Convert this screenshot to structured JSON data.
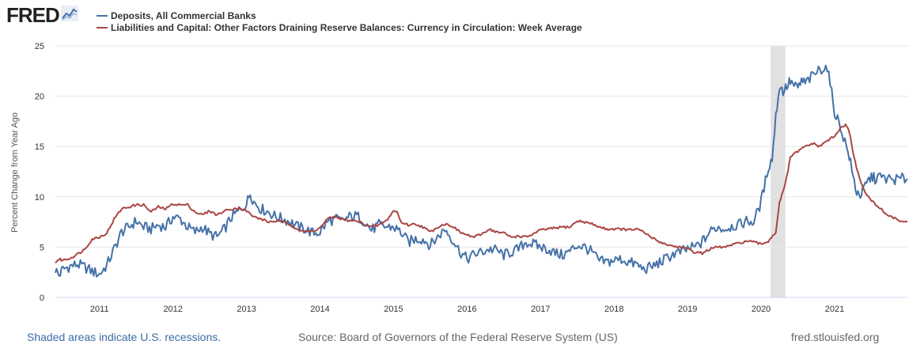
{
  "header": {
    "logo_text": "FRED",
    "logo_icon": "fred-chart-icon"
  },
  "footer": {
    "recession_note": "Shaded areas indicate U.S. recessions.",
    "source": "Source: Board of Governors of the Federal Reserve System (US)",
    "site": "fred.stlouisfed.org"
  },
  "colors": {
    "deposits": "#4572a7",
    "currency": "#aa4643",
    "grid": "#e6e6e6",
    "recession": "#e1e1e1",
    "axis_text": "#333333"
  },
  "chart_data": {
    "type": "line",
    "title": "",
    "xlabel": "",
    "ylabel": "Percent Change from Year Ago",
    "ylim": [
      0,
      25
    ],
    "yticks": [
      0,
      5,
      10,
      15,
      20,
      25
    ],
    "xlim": [
      2010.4,
      2021.99
    ],
    "xticks": [
      2011,
      2012,
      2013,
      2014,
      2015,
      2016,
      2017,
      2018,
      2019,
      2020,
      2021
    ],
    "xtick_labels": [
      "2011",
      "2012",
      "2013",
      "2014",
      "2015",
      "2016",
      "2017",
      "2018",
      "2019",
      "2020",
      "2021"
    ],
    "grid": true,
    "recessions": [
      [
        2020.13,
        2020.33
      ]
    ],
    "series": [
      {
        "name": "Deposits, All Commercial Banks",
        "color": "#4572a7",
        "x": [
          2010.4,
          2010.45,
          2010.5,
          2010.6,
          2010.7,
          2010.8,
          2010.9,
          2011.0,
          2011.1,
          2011.2,
          2011.3,
          2011.4,
          2011.5,
          2011.6,
          2011.7,
          2011.8,
          2011.9,
          2012.0,
          2012.1,
          2012.2,
          2012.3,
          2012.4,
          2012.5,
          2012.6,
          2012.7,
          2012.8,
          2012.9,
          2013.0,
          2013.05,
          2013.1,
          2013.2,
          2013.3,
          2013.4,
          2013.5,
          2013.6,
          2013.7,
          2013.8,
          2013.9,
          2014.0,
          2014.1,
          2014.2,
          2014.3,
          2014.4,
          2014.5,
          2014.6,
          2014.7,
          2014.8,
          2014.9,
          2015.0,
          2015.1,
          2015.2,
          2015.3,
          2015.4,
          2015.5,
          2015.6,
          2015.7,
          2015.8,
          2015.9,
          2016.0,
          2016.1,
          2016.2,
          2016.3,
          2016.4,
          2016.5,
          2016.6,
          2016.7,
          2016.8,
          2016.9,
          2017.0,
          2017.1,
          2017.2,
          2017.3,
          2017.4,
          2017.5,
          2017.6,
          2017.7,
          2017.8,
          2017.9,
          2018.0,
          2018.1,
          2018.2,
          2018.3,
          2018.4,
          2018.5,
          2018.6,
          2018.7,
          2018.8,
          2018.9,
          2019.0,
          2019.1,
          2019.2,
          2019.3,
          2019.4,
          2019.5,
          2019.6,
          2019.7,
          2019.8,
          2019.9,
          2020.0,
          2020.1,
          2020.15,
          2020.2,
          2020.25,
          2020.3,
          2020.35,
          2020.4,
          2020.45,
          2020.5,
          2020.55,
          2020.6,
          2020.7,
          2020.8,
          2020.9,
          2021.0,
          2021.1,
          2021.2,
          2021.25,
          2021.3,
          2021.35,
          2021.4,
          2021.45,
          2021.5,
          2021.55,
          2021.6,
          2021.7,
          2021.8,
          2021.9,
          2021.99
        ],
        "values": [
          2.8,
          2.2,
          2.8,
          3.1,
          3.3,
          3.0,
          2.6,
          2.3,
          3.2,
          4.8,
          6.5,
          7.0,
          7.6,
          7.0,
          6.8,
          7.2,
          7.0,
          8.0,
          7.8,
          7.0,
          6.5,
          7.0,
          6.3,
          6.0,
          6.8,
          8.0,
          8.6,
          9.3,
          10.4,
          9.5,
          8.8,
          8.5,
          8.0,
          7.8,
          7.5,
          7.0,
          6.8,
          6.4,
          6.5,
          7.5,
          7.8,
          7.6,
          8.0,
          8.1,
          7.6,
          6.7,
          7.2,
          7.0,
          7.0,
          6.5,
          5.5,
          5.8,
          5.8,
          5.2,
          6.0,
          6.8,
          5.8,
          4.6,
          3.8,
          4.3,
          4.5,
          4.8,
          4.7,
          4.2,
          4.5,
          4.8,
          5.5,
          5.3,
          5.0,
          4.8,
          4.4,
          4.2,
          4.6,
          5.2,
          5.0,
          4.5,
          3.6,
          3.5,
          3.7,
          3.8,
          3.5,
          3.3,
          2.8,
          3.0,
          3.4,
          3.8,
          4.3,
          4.5,
          4.8,
          5.0,
          5.5,
          6.5,
          7.0,
          6.8,
          7.1,
          7.2,
          7.6,
          7.5,
          9.5,
          13.0,
          13.8,
          18.0,
          21.0,
          20.5,
          21.0,
          21.5,
          21.0,
          20.8,
          21.5,
          21.3,
          22.0,
          22.7,
          22.9,
          18.5,
          16.5,
          14.0,
          12.0,
          10.5,
          10.2,
          10.8,
          11.5,
          12.0,
          11.8,
          12.0,
          11.8,
          11.7,
          11.8,
          11.8
        ]
      },
      {
        "name": "Liabilities and Capital: Other Factors Draining Reserve Balances: Currency in Circulation: Week Average",
        "color": "#aa4643",
        "x": [
          2010.4,
          2010.45,
          2010.5,
          2010.6,
          2010.7,
          2010.8,
          2010.9,
          2011.0,
          2011.1,
          2011.2,
          2011.3,
          2011.4,
          2011.5,
          2011.6,
          2011.7,
          2011.8,
          2011.9,
          2012.0,
          2012.1,
          2012.2,
          2012.3,
          2012.4,
          2012.5,
          2012.6,
          2012.7,
          2012.8,
          2012.9,
          2013.0,
          2013.1,
          2013.2,
          2013.3,
          2013.4,
          2013.5,
          2013.6,
          2013.7,
          2013.8,
          2013.9,
          2014.0,
          2014.1,
          2014.2,
          2014.3,
          2014.4,
          2014.5,
          2014.6,
          2014.7,
          2014.8,
          2014.9,
          2015.0,
          2015.05,
          2015.1,
          2015.2,
          2015.3,
          2015.4,
          2015.5,
          2015.6,
          2015.7,
          2015.8,
          2015.9,
          2016.0,
          2016.1,
          2016.2,
          2016.3,
          2016.4,
          2016.5,
          2016.6,
          2016.7,
          2016.8,
          2016.9,
          2017.0,
          2017.1,
          2017.2,
          2017.3,
          2017.4,
          2017.5,
          2017.6,
          2017.7,
          2017.8,
          2017.9,
          2018.0,
          2018.1,
          2018.2,
          2018.3,
          2018.4,
          2018.5,
          2018.6,
          2018.7,
          2018.8,
          2018.9,
          2019.0,
          2019.1,
          2019.2,
          2019.3,
          2019.4,
          2019.5,
          2019.6,
          2019.7,
          2019.8,
          2019.9,
          2020.0,
          2020.1,
          2020.2,
          2020.25,
          2020.3,
          2020.35,
          2020.4,
          2020.5,
          2020.6,
          2020.7,
          2020.8,
          2020.9,
          2021.0,
          2021.1,
          2021.15,
          2021.2,
          2021.25,
          2021.3,
          2021.4,
          2021.5,
          2021.6,
          2021.7,
          2021.8,
          2021.9,
          2021.99
        ],
        "values": [
          3.5,
          3.8,
          3.7,
          3.9,
          4.3,
          4.8,
          5.8,
          6.0,
          6.4,
          7.8,
          8.8,
          9.0,
          9.2,
          9.2,
          8.5,
          9.0,
          8.8,
          9.3,
          9.2,
          9.2,
          8.5,
          8.2,
          8.6,
          8.2,
          8.6,
          8.8,
          8.9,
          8.6,
          8.0,
          7.8,
          7.5,
          7.6,
          7.5,
          7.2,
          6.8,
          6.5,
          6.6,
          6.9,
          7.8,
          8.0,
          7.8,
          7.6,
          7.6,
          7.3,
          7.0,
          7.2,
          7.6,
          8.6,
          8.5,
          7.5,
          7.2,
          7.3,
          7.0,
          6.5,
          7.0,
          7.3,
          7.1,
          6.5,
          6.2,
          6.0,
          6.3,
          6.8,
          6.5,
          6.4,
          6.0,
          6.1,
          6.0,
          6.3,
          6.7,
          6.8,
          6.9,
          7.0,
          7.0,
          7.6,
          7.5,
          7.3,
          7.0,
          6.8,
          6.8,
          6.8,
          6.7,
          6.8,
          6.5,
          6.0,
          5.6,
          5.3,
          5.1,
          5.0,
          4.8,
          4.5,
          4.4,
          4.8,
          5.0,
          5.0,
          5.2,
          5.4,
          5.6,
          5.5,
          5.3,
          5.6,
          6.5,
          9.5,
          10.5,
          12.0,
          14.0,
          14.5,
          15.0,
          15.3,
          15.0,
          15.6,
          16.0,
          17.0,
          17.1,
          16.5,
          14.5,
          12.8,
          10.6,
          9.6,
          9.0,
          8.3,
          7.9,
          7.6,
          7.5
        ]
      }
    ]
  }
}
